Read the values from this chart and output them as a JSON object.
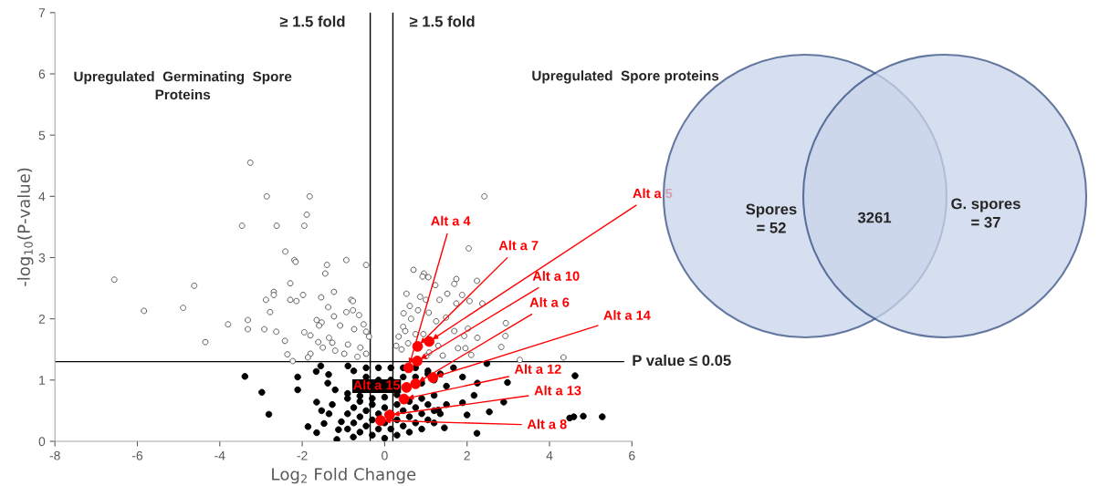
{
  "chart_data": [
    {
      "type": "scatter",
      "xlabel": "Log$_{2}$ Fold Change",
      "ylabel": "-log$_{10}$(P-value)",
      "xlim": [
        -8,
        6
      ],
      "ylim": [
        0,
        7
      ],
      "xticks": [
        -8,
        -6,
        -4,
        -2,
        0,
        2,
        4,
        6
      ],
      "yticks": [
        0,
        1,
        2,
        3,
        4,
        5,
        6,
        7
      ],
      "grid": false,
      "marker": "circle",
      "ref_lines": [
        {
          "axis": "x",
          "value": -0.35,
          "label": "≥ 1.5 fold",
          "color": "#000000"
        },
        {
          "axis": "x",
          "value": 0.2,
          "label": "≥ 1.5 fold",
          "color": "#000000"
        },
        {
          "axis": "y",
          "value": 1.3,
          "label": "P value ≤ 0.05",
          "color": "#000000"
        }
      ],
      "series": [
        {
          "color": "#595959",
          "x": [
            -3.26,
            -2.86,
            -1.82,
            -1.89,
            -3.46,
            -2.62,
            -1.95,
            -2.41,
            -2.19,
            -2.16,
            -0.93,
            -1.4,
            -0.45,
            -1.44,
            -6.56,
            -4.62,
            -2.29,
            -2.69,
            -1.23,
            -2.69,
            -1.98,
            -1.54,
            -2.88,
            -2.29,
            -2.14,
            -0.81,
            -0.77,
            -5.84,
            -1.37,
            -4.89,
            -2.78,
            -0.93,
            -0.77,
            -0.62,
            -3.32,
            -1.65,
            -1.23,
            -3.8,
            -1.53,
            -1.59,
            -3.32,
            -2.92,
            -2.63,
            -1.95,
            -1.8,
            -0.51,
            -0.45,
            -1.08,
            -1.35,
            -0.74,
            -0.38,
            -4.35,
            -2.42,
            -1.61,
            -1.27,
            -0.89,
            -0.59,
            -2.36,
            -1.8,
            -1.5,
            -1.2,
            -0.98,
            -1.86,
            -2.23,
            -0.66,
            -0.45,
            2.42,
            2.04,
            0.7,
            0.95,
            1.06,
            0.92,
            1.74,
            2.24,
            1.23,
            1.69,
            0.53,
            0.86,
            1.52,
            1.88,
            1.0,
            1.33,
            1.74,
            2.06,
            2.37,
            0.46,
            0.61,
            0.81,
            1.07,
            0.64,
            1.25,
            1.49,
            0.45,
            2.02,
            2.94,
            1.69,
            0.34,
            0.94,
            1.93,
            2.25,
            2.93,
            0.28,
            0.57,
            1.3,
            1.78,
            1.96,
            2.83,
            0.41,
            1.08,
            1.41,
            2.1,
            3.28,
            4.34,
            1.01,
            0.75,
            0.5
          ],
          "values": [
            4.55,
            4.0,
            4.0,
            3.7,
            3.52,
            3.52,
            3.52,
            3.1,
            2.96,
            2.93,
            2.96,
            2.88,
            2.88,
            2.74,
            2.64,
            2.54,
            2.58,
            2.44,
            2.44,
            2.39,
            2.39,
            2.35,
            2.31,
            2.31,
            2.29,
            2.31,
            2.29,
            2.13,
            2.19,
            2.18,
            2.11,
            2.11,
            2.14,
            2.06,
            1.98,
            1.98,
            2.04,
            1.91,
            1.94,
            1.89,
            1.83,
            1.83,
            1.79,
            1.78,
            1.73,
            1.91,
            1.79,
            1.89,
            1.69,
            1.83,
            1.71,
            1.62,
            1.64,
            1.62,
            1.61,
            1.58,
            1.53,
            1.42,
            1.43,
            1.53,
            1.48,
            1.43,
            1.37,
            1.31,
            1.38,
            1.43,
            4.0,
            3.15,
            2.8,
            2.74,
            2.68,
            2.69,
            2.65,
            2.62,
            2.55,
            2.57,
            2.41,
            2.36,
            2.41,
            2.39,
            2.31,
            2.31,
            2.25,
            2.29,
            2.25,
            2.09,
            2.21,
            2.14,
            2.1,
            2.0,
            1.96,
            2.02,
            1.87,
            1.84,
            1.93,
            1.8,
            1.71,
            1.75,
            1.72,
            1.69,
            1.72,
            1.56,
            1.6,
            1.56,
            1.52,
            1.52,
            1.54,
            1.5,
            1.45,
            1.4,
            1.41,
            1.33,
            1.37,
            1.39,
            1.75,
            1.8
          ]
        },
        {
          "color": "#000000",
          "x": [
            -3.39,
            -2.98,
            -2.11,
            -2.11,
            -2.81,
            -1.86,
            -1.65,
            -1.65,
            -1.55,
            -1.66,
            -1.36,
            -1.38,
            -1.53,
            -1.35,
            -1.47,
            -1.16,
            -1.27,
            -1.2,
            -1.05,
            -1.12,
            -0.76,
            -0.89,
            5.28,
            4.82,
            4.59,
            4.49,
            4.62,
            2.98,
            2.89,
            2.54,
            2.24,
            1.45,
            2.48,
            2.25,
            1.89,
            2.17,
            2.0,
            1.67,
            1.3,
            1.89,
            -0.9,
            -0.6,
            -0.3,
            0.0,
            0.3,
            0.6,
            0.9,
            1.2,
            -0.9,
            -0.6,
            -0.3,
            0.0,
            0.3,
            0.6,
            0.9,
            1.2,
            -0.9,
            -0.6,
            -0.3,
            0.0,
            0.3,
            0.6,
            0.9,
            1.2,
            1.5,
            -0.9,
            -0.6,
            -0.3,
            0.0,
            0.3,
            0.6,
            0.9,
            1.2,
            1.5,
            -0.75,
            -0.45,
            -0.15,
            0.15,
            0.45,
            0.75,
            1.05,
            1.35,
            -0.75,
            -0.45,
            -0.15,
            0.15,
            0.45,
            0.75,
            1.05,
            1.35,
            -0.75,
            -0.45,
            -0.15,
            0.15,
            0.45,
            0.75,
            1.05,
            -0.45,
            -0.15,
            0.15,
            0.45,
            0.75,
            1.05
          ],
          "values": [
            1.06,
            0.8,
            1.05,
            0.84,
            0.44,
            0.24,
            0.14,
            0.64,
            1.23,
            1.14,
            1.09,
            0.95,
            0.5,
            0.45,
            0.29,
            0.03,
            0.6,
            0.84,
            0.32,
            0.19,
            0.07,
            1.23,
            0.4,
            0.41,
            0.4,
            0.38,
            1.07,
            0.96,
            0.64,
            0.48,
            0.13,
            0.22,
            1.27,
            0.95,
            1.05,
            0.75,
            0.43,
            1.2,
            0.51,
            0.63,
            0.2,
            0.15,
            0.1,
            0.05,
            0.1,
            0.15,
            0.2,
            0.3,
            0.45,
            0.4,
            0.35,
            0.3,
            0.35,
            0.4,
            0.45,
            0.5,
            0.7,
            0.65,
            0.6,
            0.55,
            0.6,
            0.65,
            0.7,
            0.75,
            0.6,
            0.78,
            0.74,
            0.7,
            0.72,
            0.76,
            null,
            0.95,
            1.0,
            0.9,
            1.15,
            1.2,
            1.2,
            1.2,
            1.2,
            1.2,
            1.15,
            1.1,
            0.3,
            0.25,
            0.2,
            0.2,
            0.25,
            0.3,
            0.35,
            0.45,
            0.55,
            0.5,
            0.45,
            0.45,
            0.5,
            0.55,
            0.6,
            1.05,
            1.0,
            1.0,
            1.05,
            1.05,
            1.1
          ]
        },
        {
          "color": "#ff0000",
          "x": [
            0.58,
            0.8,
            1.08,
            0.79,
            0.75,
            1.17,
            0.47,
            0.12,
            -0.1,
            0.53
          ],
          "values": [
            1.2,
            1.55,
            1.63,
            1.31,
            0.94,
            1.04,
            0.69,
            0.43,
            0.34,
            0.88
          ]
        }
      ],
      "annotations": [
        "Upregulated  Germinating  Spore\nProteins",
        "Upregulated  Spore proteins",
        {
          "text": "Alt a 4",
          "x": 0.58,
          "y": 1.2
        },
        {
          "text": "Alt a 7",
          "x": 0.8,
          "y": 1.55
        },
        {
          "text": "Alt a 5",
          "x": 1.08,
          "y": 1.63
        },
        {
          "text": "Alt a 10",
          "x": 0.79,
          "y": 1.31
        },
        {
          "text": "Alt a 6",
          "x": 0.75,
          "y": 0.94
        },
        {
          "text": "Alt a 14",
          "x": 1.17,
          "y": 1.04
        },
        {
          "text": "Alt a 12",
          "x": 0.47,
          "y": 0.69
        },
        {
          "text": "Alt a 13",
          "x": 0.12,
          "y": 0.43
        },
        {
          "text": "Alt a 8",
          "x": -0.1,
          "y": 0.34
        },
        {
          "text": "Alt a 15",
          "x": 0.53,
          "y": 0.88
        }
      ]
    },
    {
      "type": "other",
      "colors": [
        "#c9d5ea",
        "#c9d5ea"
      ],
      "annotations": [
        "Spores\n= 52",
        "3261",
        "G. spores\n= 37"
      ]
    }
  ]
}
